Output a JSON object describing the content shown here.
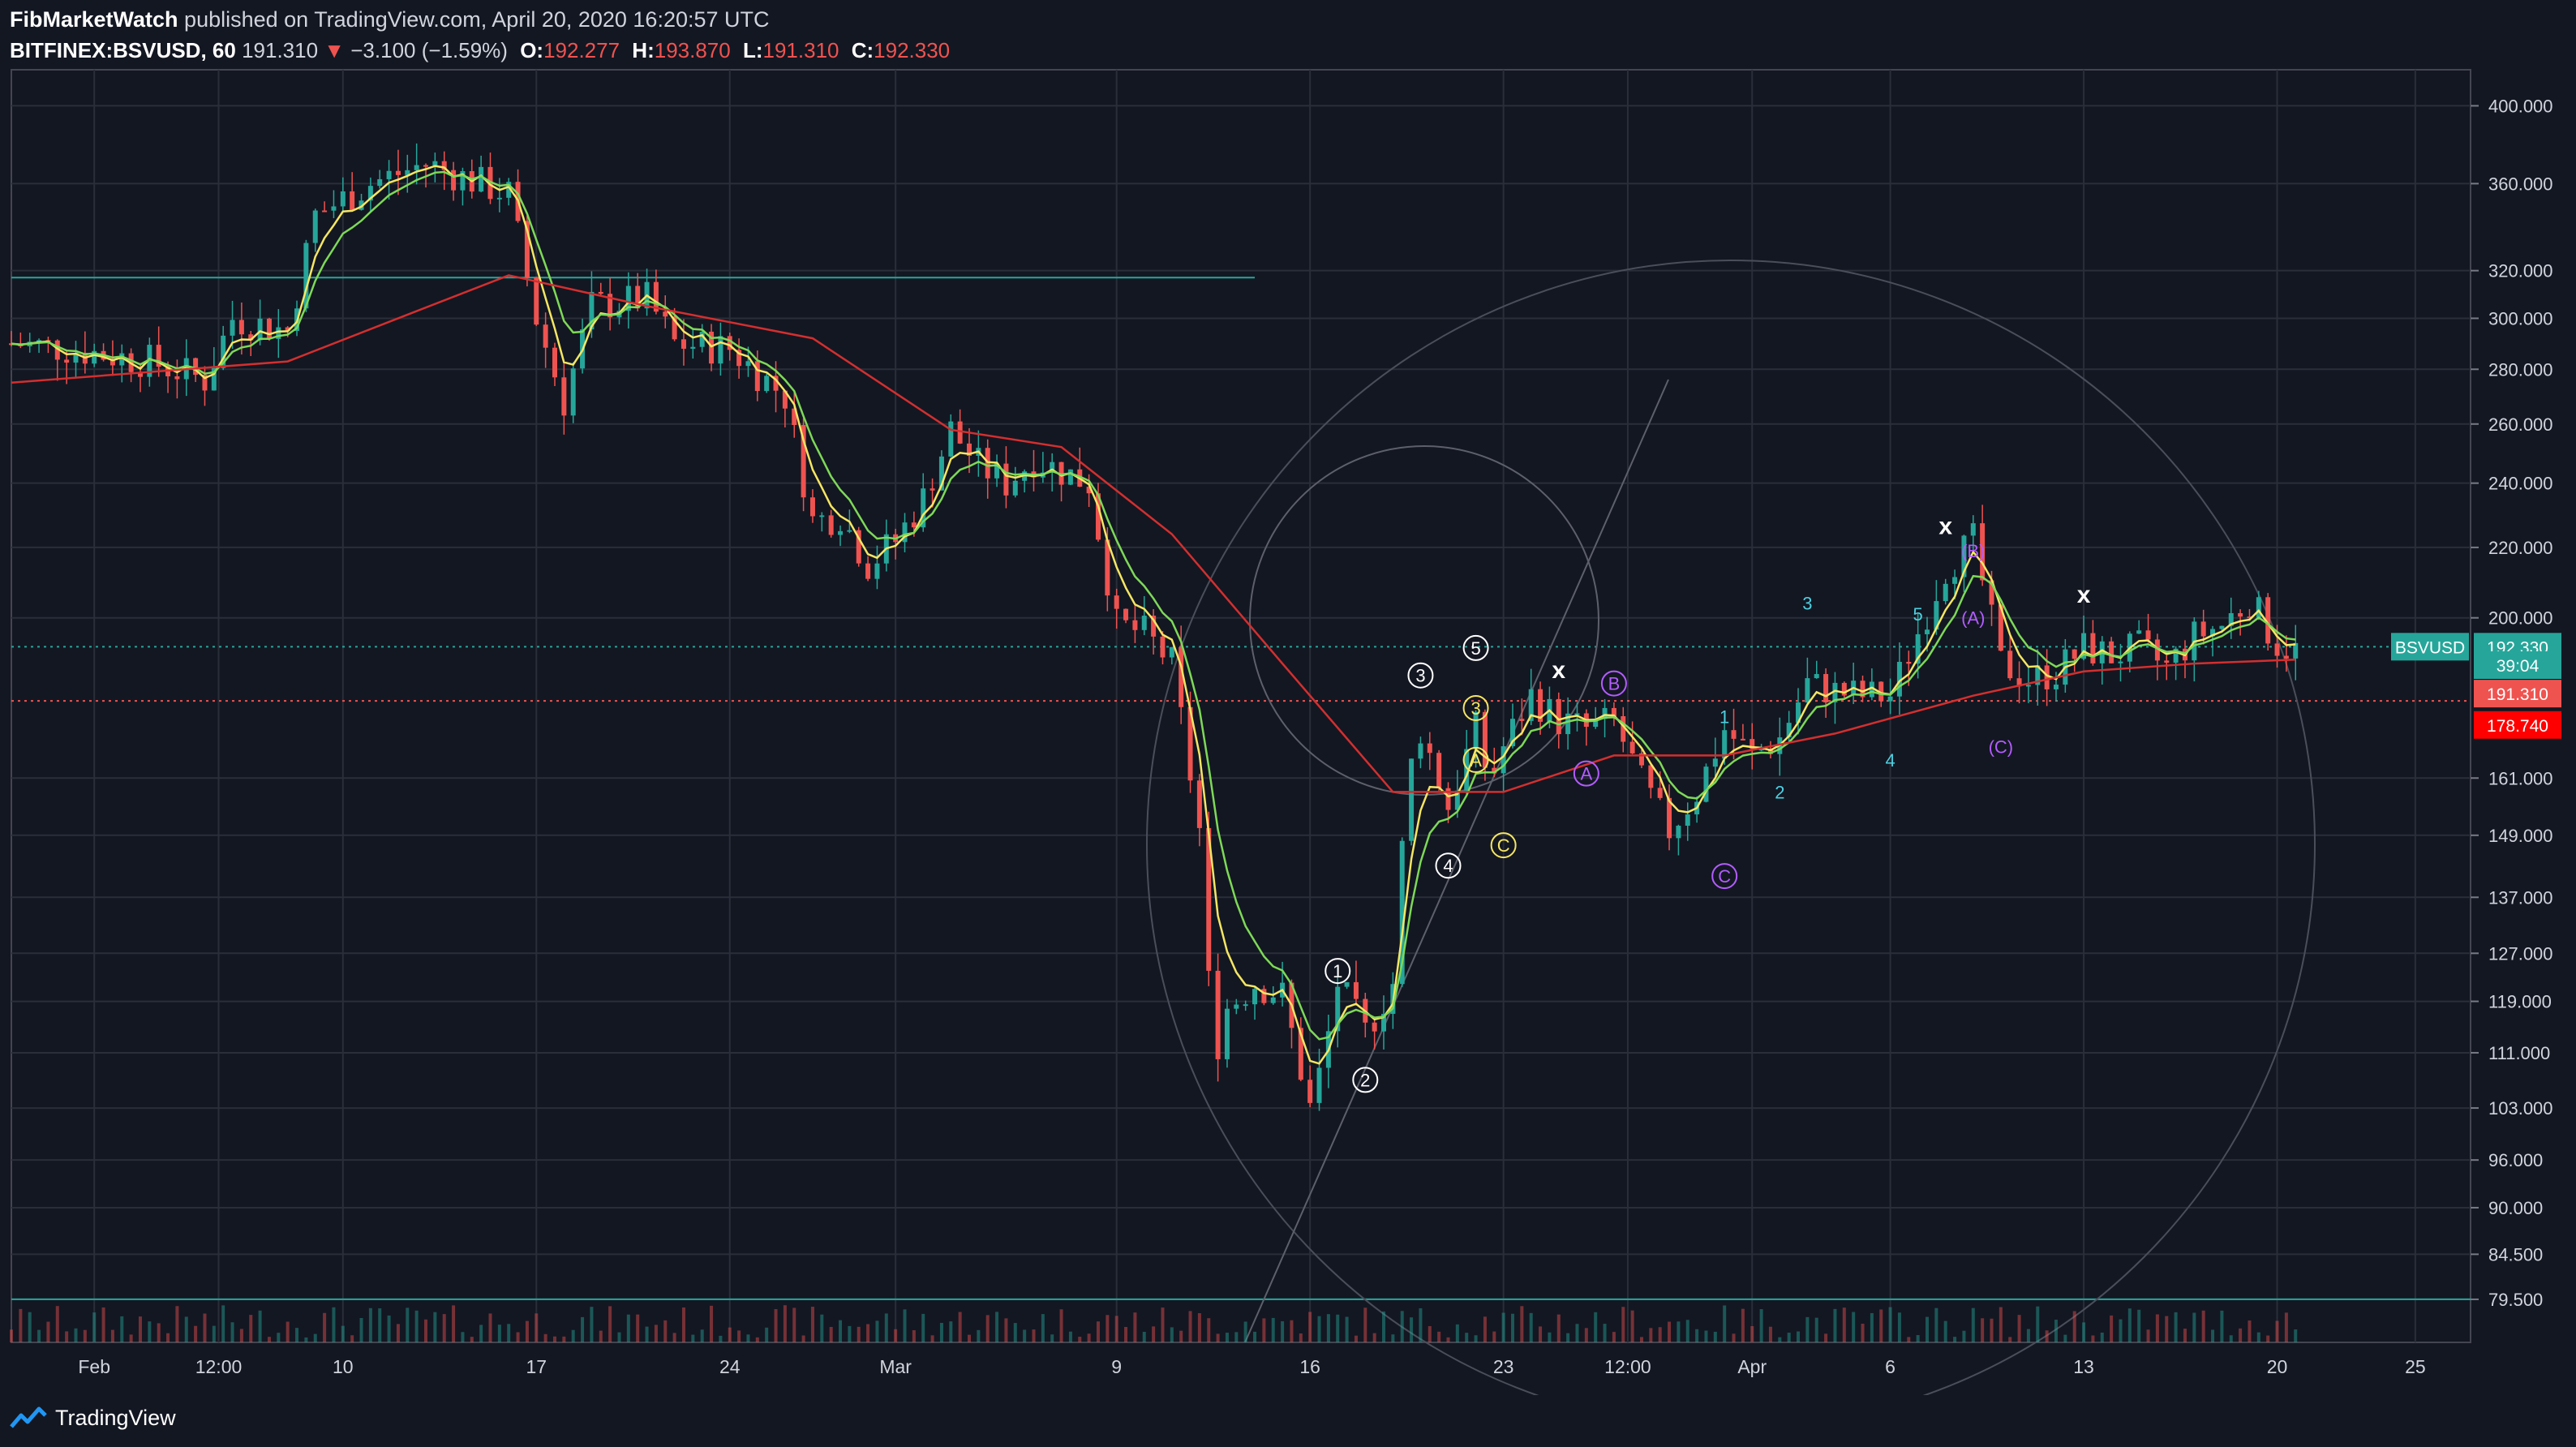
{
  "header": {
    "author": "FibMarketWatch",
    "published_text": "published on TradingView.com, April 20, 2020 16:20:57 UTC",
    "symbol": "BITFINEX:BSVUSD, 60",
    "price": "191.310",
    "change": "−3.100 (−1.59%)",
    "o_label": "O:",
    "o_value": "192.277",
    "h_label": "H:",
    "h_value": "193.870",
    "l_label": "L:",
    "l_value": "191.310",
    "c_label": "C:",
    "c_value": "192.330"
  },
  "footer": {
    "brand": "TradingView"
  },
  "colors": {
    "background": "#131722",
    "grid": "#2a2e39",
    "up": "#26a69a",
    "down": "#ef5350",
    "ema_fast": "#f5e663",
    "ema_mid": "#7ed957",
    "ema_slow": "#d32f2f",
    "wave_white": "#ffffff",
    "wave_yellow": "#f5e663",
    "wave_purple": "#b35cff",
    "wave_cyan": "#4dd0e1"
  },
  "chart_data": {
    "type": "candlestick",
    "symbol": "BITFINEX:BSVUSD",
    "interval": "60",
    "y_scale": "log",
    "ylim": [
      75,
      420
    ],
    "y_ticks": [
      "400.000",
      "360.000",
      "320.000",
      "300.000",
      "280.000",
      "260.000",
      "240.000",
      "220.000",
      "200.000",
      "161.000",
      "149.000",
      "137.000",
      "127.000",
      "119.000",
      "111.000",
      "103.000",
      "96.000",
      "90.000",
      "84.500",
      "79.500"
    ],
    "x_ticks": [
      "Feb",
      "12:00",
      "10",
      "17",
      "24",
      "Mar",
      "9",
      "16",
      "23",
      "12:00",
      "Apr",
      "6",
      "13",
      "20",
      "25"
    ],
    "price_path": [
      {
        "date": "2020-01-29",
        "price": 290
      },
      {
        "date": "2020-01-31",
        "price": 288
      },
      {
        "date": "2020-02-03",
        "price": 283
      },
      {
        "date": "2020-02-05",
        "price": 276
      },
      {
        "date": "2020-02-06",
        "price": 300
      },
      {
        "date": "2020-02-08",
        "price": 295
      },
      {
        "date": "2020-02-09",
        "price": 345
      },
      {
        "date": "2020-02-11",
        "price": 360
      },
      {
        "date": "2020-02-13",
        "price": 370
      },
      {
        "date": "2020-02-16",
        "price": 355
      },
      {
        "date": "2020-02-17",
        "price": 300
      },
      {
        "date": "2020-02-18",
        "price": 268
      },
      {
        "date": "2020-02-19",
        "price": 305
      },
      {
        "date": "2020-02-21",
        "price": 308
      },
      {
        "date": "2020-02-22",
        "price": 290
      },
      {
        "date": "2020-02-24",
        "price": 288
      },
      {
        "date": "2020-02-26",
        "price": 270
      },
      {
        "date": "2020-02-27",
        "price": 228
      },
      {
        "date": "2020-02-28",
        "price": 230
      },
      {
        "date": "2020-02-29",
        "price": 215
      },
      {
        "date": "2020-03-01",
        "price": 222
      },
      {
        "date": "2020-03-02",
        "price": 235
      },
      {
        "date": "2020-03-03",
        "price": 258
      },
      {
        "date": "2020-03-04",
        "price": 246
      },
      {
        "date": "2020-03-05",
        "price": 240
      },
      {
        "date": "2020-03-06",
        "price": 248
      },
      {
        "date": "2020-03-08",
        "price": 240
      },
      {
        "date": "2020-03-09",
        "price": 198
      },
      {
        "date": "2020-03-10",
        "price": 196
      },
      {
        "date": "2020-03-11",
        "price": 188
      },
      {
        "date": "2020-03-12",
        "price": 150
      },
      {
        "date": "2020-03-12 12:00",
        "price": 110
      },
      {
        "date": "2020-03-13",
        "price": 118
      },
      {
        "date": "2020-03-14",
        "price": 122
      },
      {
        "date": "2020-03-15",
        "price": 120
      },
      {
        "date": "2020-03-16",
        "price": 103
      },
      {
        "date": "2020-03-16 12:00",
        "price": 110
      },
      {
        "date": "2020-03-17",
        "price": 122
      },
      {
        "date": "2020-03-18",
        "price": 114
      },
      {
        "date": "2020-03-19",
        "price": 122
      },
      {
        "date": "2020-03-19 12:00",
        "price": 160
      },
      {
        "date": "2020-03-20",
        "price": 172
      },
      {
        "date": "2020-03-21",
        "price": 155
      },
      {
        "date": "2020-03-22",
        "price": 172
      },
      {
        "date": "2020-03-22 12:00",
        "price": 160
      },
      {
        "date": "2020-03-23",
        "price": 168
      },
      {
        "date": "2020-03-24",
        "price": 180
      },
      {
        "date": "2020-03-25",
        "price": 174
      },
      {
        "date": "2020-03-26",
        "price": 172
      },
      {
        "date": "2020-03-27",
        "price": 174
      },
      {
        "date": "2020-03-28",
        "price": 160
      },
      {
        "date": "2020-03-29",
        "price": 150
      },
      {
        "date": "2020-03-30",
        "price": 158
      },
      {
        "date": "2020-03-31",
        "price": 172
      },
      {
        "date": "2020-04-01",
        "price": 166
      },
      {
        "date": "2020-04-02",
        "price": 170
      },
      {
        "date": "2020-04-03",
        "price": 183
      },
      {
        "date": "2020-04-04",
        "price": 181
      },
      {
        "date": "2020-04-05",
        "price": 180
      },
      {
        "date": "2020-04-06",
        "price": 180
      },
      {
        "date": "2020-04-07",
        "price": 196
      },
      {
        "date": "2020-04-08",
        "price": 214
      },
      {
        "date": "2020-04-09",
        "price": 222
      },
      {
        "date": "2020-04-10",
        "price": 188
      },
      {
        "date": "2020-04-11",
        "price": 184
      },
      {
        "date": "2020-04-12",
        "price": 186
      },
      {
        "date": "2020-04-13",
        "price": 192
      },
      {
        "date": "2020-04-14",
        "price": 190
      },
      {
        "date": "2020-04-15",
        "price": 192
      },
      {
        "date": "2020-04-16",
        "price": 187
      },
      {
        "date": "2020-04-17",
        "price": 195
      },
      {
        "date": "2020-04-18",
        "price": 198
      },
      {
        "date": "2020-04-19",
        "price": 205
      },
      {
        "date": "2020-04-20",
        "price": 193
      },
      {
        "date": "2020-04-20 16:00",
        "price": 191.31
      }
    ],
    "ema_slow_path": [
      {
        "date": "2020-01-29",
        "price": 275
      },
      {
        "date": "2020-02-08",
        "price": 283
      },
      {
        "date": "2020-02-12",
        "price": 300
      },
      {
        "date": "2020-02-16",
        "price": 318
      },
      {
        "date": "2020-02-21",
        "price": 305
      },
      {
        "date": "2020-02-27",
        "price": 292
      },
      {
        "date": "2020-03-03",
        "price": 258
      },
      {
        "date": "2020-03-07",
        "price": 252
      },
      {
        "date": "2020-03-11",
        "price": 224
      },
      {
        "date": "2020-03-15",
        "price": 188
      },
      {
        "date": "2020-03-19",
        "price": 158
      },
      {
        "date": "2020-03-23",
        "price": 158
      },
      {
        "date": "2020-03-27",
        "price": 166
      },
      {
        "date": "2020-03-31",
        "price": 166
      },
      {
        "date": "2020-04-04",
        "price": 171
      },
      {
        "date": "2020-04-09",
        "price": 180
      },
      {
        "date": "2020-04-13",
        "price": 186
      },
      {
        "date": "2020-04-17",
        "price": 188
      },
      {
        "date": "2020-04-20 16:00",
        "price": 189
      }
    ],
    "labels_on_axis": [
      {
        "text": "BSVUSD",
        "value": "192.330",
        "color": "#26a69a"
      },
      {
        "text": "",
        "value": "39:04",
        "color": "#26a69a"
      },
      {
        "text": "",
        "value": "191.310",
        "color": "#ef5350"
      },
      {
        "text": "",
        "value": "178.740",
        "color": "#ff0000"
      }
    ],
    "annotations": [
      {
        "text": "1",
        "style": "circle-white",
        "date": "2020-03-17",
        "price": 124
      },
      {
        "text": "2",
        "style": "circle-white",
        "date": "2020-03-18",
        "price": 107
      },
      {
        "text": "3",
        "style": "circle-white",
        "date": "2020-03-20",
        "price": 185
      },
      {
        "text": "4",
        "style": "circle-white",
        "date": "2020-03-21",
        "price": 143
      },
      {
        "text": "5",
        "style": "circle-white",
        "date": "2020-03-22",
        "price": 192
      },
      {
        "text": "3",
        "style": "circle-yellow",
        "date": "2020-03-22",
        "price": 177
      },
      {
        "text": "A",
        "style": "circle-yellow",
        "date": "2020-03-22",
        "price": 165
      },
      {
        "text": "C",
        "style": "circle-yellow",
        "date": "2020-03-23",
        "price": 147
      },
      {
        "text": "x",
        "style": "x",
        "date": "2020-03-25",
        "price": 186
      },
      {
        "text": "B",
        "style": "circle-purple",
        "date": "2020-03-27",
        "price": 183
      },
      {
        "text": "A",
        "style": "circle-purple",
        "date": "2020-03-26",
        "price": 162
      },
      {
        "text": "C",
        "style": "circle-purple",
        "date": "2020-03-31",
        "price": 141
      },
      {
        "text": "1",
        "style": "cyan",
        "date": "2020-03-31",
        "price": 175
      },
      {
        "text": "2",
        "style": "cyan",
        "date": "2020-04-02",
        "price": 158
      },
      {
        "text": "3",
        "style": "cyan",
        "date": "2020-04-03",
        "price": 204
      },
      {
        "text": "4",
        "style": "cyan",
        "date": "2020-04-06",
        "price": 165
      },
      {
        "text": "5",
        "style": "cyan",
        "date": "2020-04-07",
        "price": 201
      },
      {
        "text": "x",
        "style": "x",
        "date": "2020-04-08",
        "price": 226
      },
      {
        "text": "(B)",
        "style": "purple",
        "date": "2020-04-09",
        "price": 219
      },
      {
        "text": "(A)",
        "style": "purple",
        "date": "2020-04-09",
        "price": 200
      },
      {
        "text": "(C)",
        "style": "purple",
        "date": "2020-04-10",
        "price": 168
      },
      {
        "text": "x",
        "style": "x",
        "date": "2020-04-13",
        "price": 206
      }
    ],
    "horizontal_lines": [
      {
        "price": 317,
        "color": "#26a69a",
        "from": "2020-01-29",
        "to": "2020-03-14"
      },
      {
        "price": 192.33,
        "color": "#26a69a",
        "style": "dotted"
      },
      {
        "price": 178.74,
        "color": "#ef5350",
        "style": "dotted"
      },
      {
        "price": 79.5,
        "color": "#26a69a"
      }
    ],
    "grid": true
  }
}
